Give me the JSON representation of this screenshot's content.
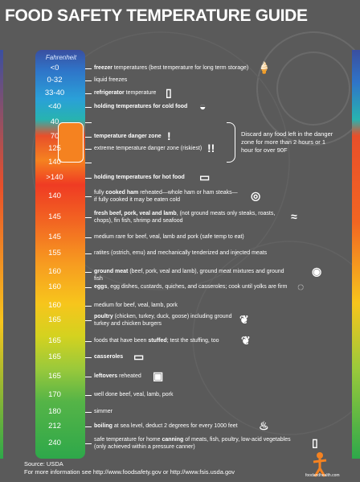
{
  "title": "FOOD SAFETY TEMPERATURE GUIDE",
  "scale_label": "Fahrenheit",
  "rows": [
    {
      "temp": "<0",
      "text_html": "<b>freezer</b> temperatures (best temperature for long term storage)",
      "icon": "ice-cream-icon"
    },
    {
      "temp": "0-32",
      "text_html": "liquid freezes",
      "icon": ""
    },
    {
      "temp": "33-40",
      "text_html": "<b>refrigerator</b> temperature",
      "icon": "refrigerator-icon"
    },
    {
      "temp": "<40",
      "text_html": "<b>holding temperatures for cold food</b>",
      "icon": "salad-bowl-icon"
    },
    {
      "temp": "40",
      "text_html": "",
      "icon": ""
    },
    {
      "temp": "70",
      "text_html": "<b>temperature danger zone</b>",
      "icon": "exclamation-icon"
    },
    {
      "temp": "125",
      "text_html": "extreme temperature danger zone (riskiest)",
      "icon": "double-exclamation-icon"
    },
    {
      "temp": "140",
      "text_html": "",
      "icon": ""
    },
    {
      "temp": ">140",
      "text_html": "<b>holding temperatures for hot food</b>",
      "icon": "chafing-dish-icon"
    },
    {
      "temp": "140",
      "text_html": "fully <b>cooked ham</b> reheated—whole ham or ham steaks—<br>if fully cooked it may be eaten cold",
      "icon": "ham-icon"
    },
    {
      "temp": "145",
      "text_html": "<b>fresh beef, pork, veal and lamb</b>, (not ground meats only steaks, roasts,<br>chops), fin fish, shrimp and seafood",
      "icon": "steak-fish-icon"
    },
    {
      "temp": "145",
      "text_html": "medium rare for beef, veal, lamb and pork (safe temp to eat)",
      "icon": ""
    },
    {
      "temp": "155",
      "text_html": "ratites (ostrich, emu) and mechanically tenderized and injected meats",
      "icon": ""
    },
    {
      "temp": "160",
      "text_html": "<b>ground meat</b> (beef, pork, veal and lamb), ground meat mixtures and ground fish",
      "icon": "burger-icon"
    },
    {
      "temp": "160",
      "text_html": "<b>eggs</b>, egg dishes, custards, quiches, and casseroles; cook until yolks are firm",
      "icon": "eggs-icon"
    },
    {
      "temp": "160",
      "text_html": "medium for beef, veal, lamb, pork",
      "icon": ""
    },
    {
      "temp": "165",
      "text_html": "<b>poultry</b> (chicken, turkey, duck, goose) including ground<br>turkey and chicken burgers",
      "icon": "poultry-icon"
    },
    {
      "temp": "165",
      "text_html": "foods that have been <b>stuffed</b>; test the stuffing, too",
      "icon": "stuffed-bird-icon"
    },
    {
      "temp": "165",
      "text_html": "<b>casseroles</b>",
      "icon": "casserole-icon"
    },
    {
      "temp": "165",
      "text_html": "<b>leftovers</b> reheated",
      "icon": "microwave-icon"
    },
    {
      "temp": "170",
      "text_html": "well done beef, veal, lamb, pork",
      "icon": ""
    },
    {
      "temp": "180",
      "text_html": "simmer",
      "icon": ""
    },
    {
      "temp": "212",
      "text_html": "<b>boiling</b> at sea level, deduct 2 degrees for every 1000 feet",
      "icon": "pot-icon"
    },
    {
      "temp": "240",
      "text_html": "safe temperature for home <b>canning</b> of meats, fish, poultry, low-acid vegetables<br>(only achieved within a pressure canner)",
      "icon": "jar-icon"
    }
  ],
  "discard_note": "Discard any food left in the danger zone for more than 2 hours or 1 hour for over 90F",
  "footer": {
    "source": "Source: USDA",
    "more_info": "For more information see http://www.foodsafety.gov or http://www.fsis.usda.gov"
  },
  "logo_text": "foodandhealth.com",
  "colors": {
    "background": "#5a5a5a",
    "danger": "#f58220",
    "cold": "#2f74c8",
    "hot": "#2ea84a"
  }
}
